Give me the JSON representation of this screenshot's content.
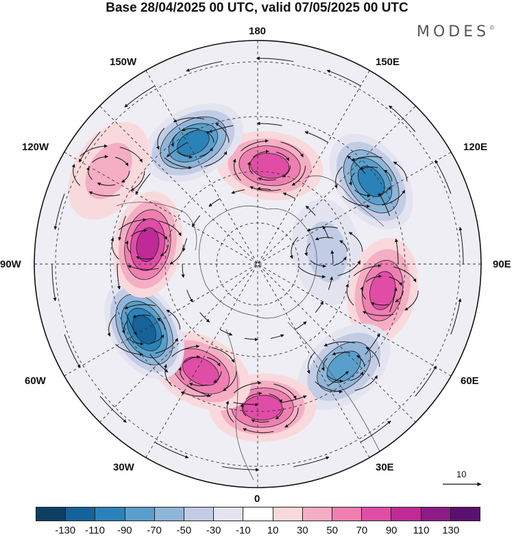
{
  "title": "Base 28/04/2025 00 UTC, valid 07/05/2025 00 UTC",
  "brand": {
    "name": "MODES",
    "mark": "©"
  },
  "longitude_labels": {
    "north": "180",
    "south": "0",
    "east": "90E",
    "west": "90W",
    "ne1": "150E",
    "ne2": "120E",
    "se1": "60E",
    "se2": "30E",
    "nw1": "150W",
    "nw2": "120W",
    "sw1": "60W",
    "sw2": "30W"
  },
  "reference_vector": {
    "label": "10",
    "icon": "arrow-right-icon"
  },
  "colorbar": {
    "ticks": [
      "-130",
      "-110",
      "-90",
      "-70",
      "-50",
      "-30",
      "-10",
      "10",
      "30",
      "50",
      "70",
      "90",
      "110",
      "130"
    ],
    "colors": [
      "#0d3f63",
      "#16629a",
      "#2b82b8",
      "#5a9fcb",
      "#8fb5d8",
      "#c2cce5",
      "#e4e4f1",
      "#ffffff",
      "#fad9dc",
      "#f5aec3",
      "#ef7fb1",
      "#e04da6",
      "#c02a96",
      "#8c1c85",
      "#5a1170"
    ]
  },
  "anomaly_cells": [
    {
      "lat": 59,
      "lon": 173,
      "level": 85
    },
    {
      "lat": 46,
      "lon": 126,
      "level": -105
    },
    {
      "lat": 68,
      "lon": 100,
      "level": -40
    },
    {
      "lat": 50,
      "lon": 78,
      "level": 85
    },
    {
      "lat": 48,
      "lon": 40,
      "level": -85
    },
    {
      "lat": 45,
      "lon": 2,
      "level": 70
    },
    {
      "lat": 52,
      "lon": -28,
      "level": 75
    },
    {
      "lat": 49,
      "lon": -60,
      "level": -115
    },
    {
      "lat": 55,
      "lon": -100,
      "level": 100
    },
    {
      "lat": 47,
      "lon": -152,
      "level": -90
    },
    {
      "lat": 35,
      "lon": -122,
      "level": 35
    }
  ]
}
